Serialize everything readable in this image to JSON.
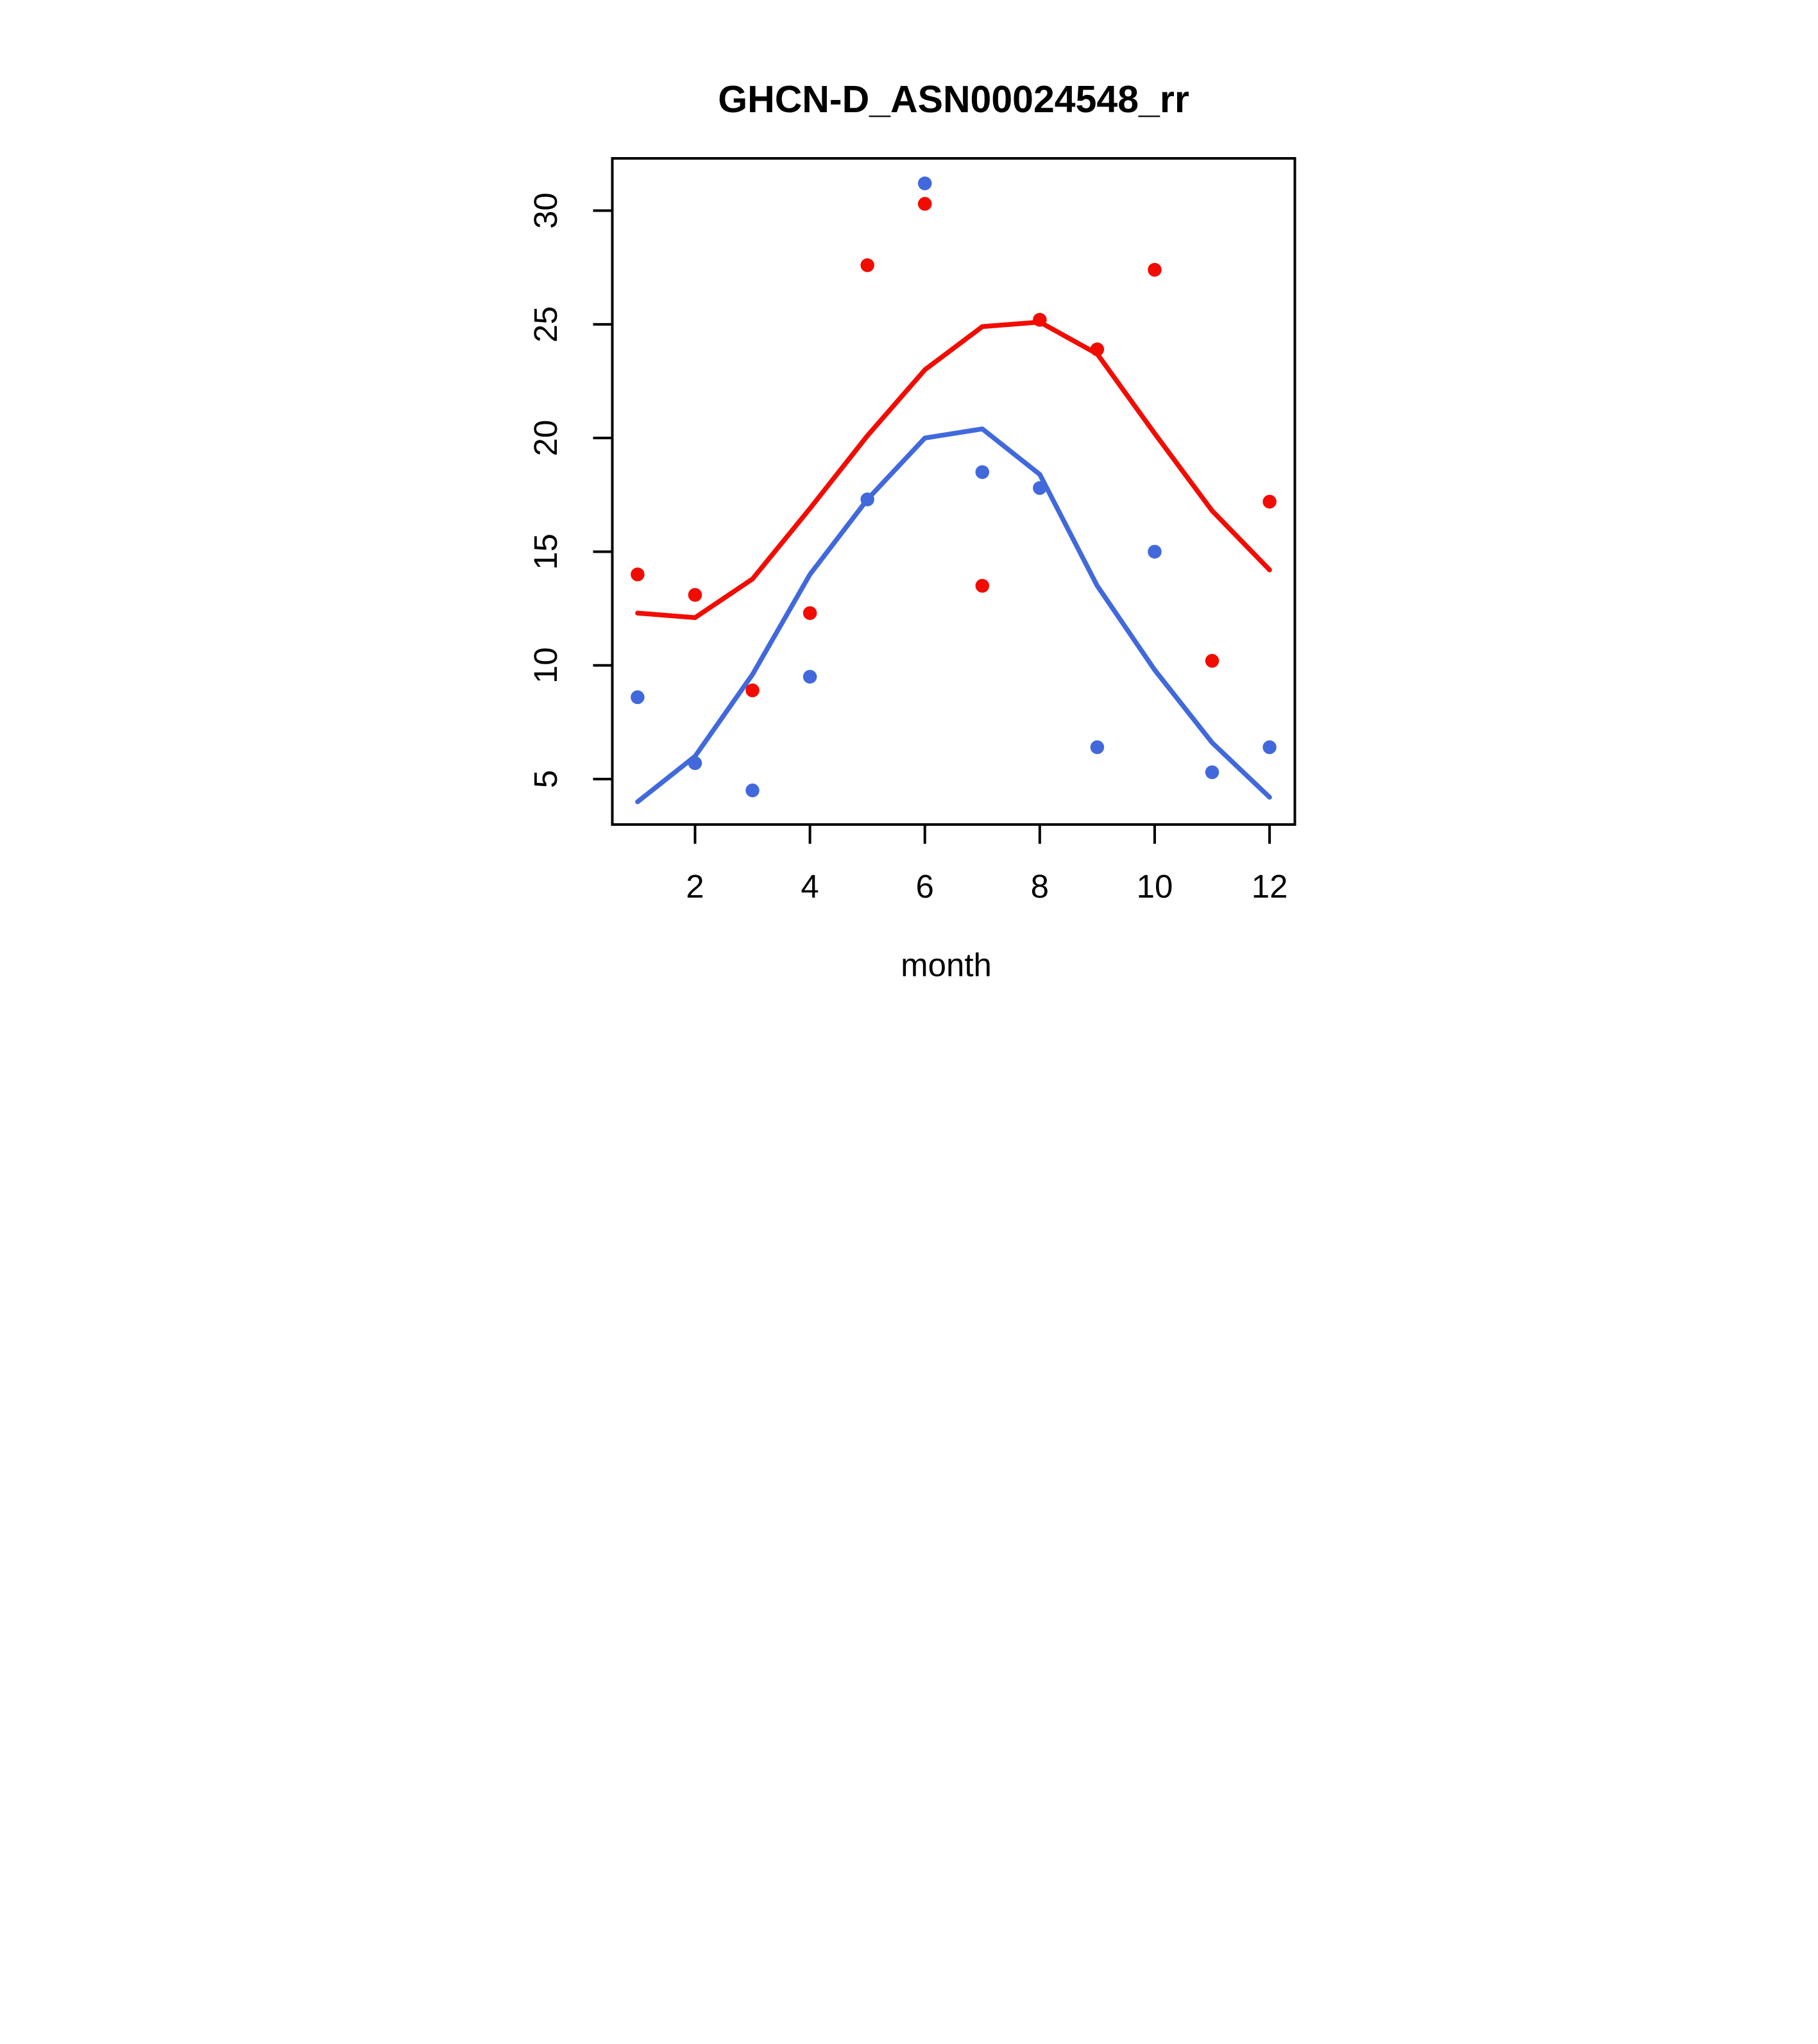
{
  "title": "GHCN-D_ASN00024548_rr",
  "xlabel": "month",
  "colors": {
    "red_series": "#F20C00",
    "blue_series": "#4169DC",
    "axis": "#000000",
    "background": "#FFFFFF"
  },
  "chart_data": {
    "type": "scatter",
    "title": "GHCN-D_ASN00024548_rr",
    "xlabel": "month",
    "ylabel": "",
    "x": [
      1,
      2,
      3,
      4,
      5,
      6,
      7,
      8,
      9,
      10,
      11,
      12
    ],
    "xticks": [
      2,
      4,
      6,
      8,
      10,
      12
    ],
    "yticks": [
      5,
      10,
      15,
      20,
      25,
      30
    ],
    "xlim": [
      0.56,
      12.44
    ],
    "ylim": [
      3.0,
      32.3
    ],
    "grid": false,
    "legend_position": "none",
    "series": [
      {
        "name": "red-line",
        "kind": "line",
        "color": "#F20C00",
        "values": [
          12.3,
          12.1,
          13.8,
          16.9,
          20.1,
          23.0,
          24.9,
          25.1,
          23.7,
          20.2,
          16.8,
          14.2
        ]
      },
      {
        "name": "blue-line",
        "kind": "line",
        "color": "#4169DC",
        "values": [
          4.0,
          6.0,
          9.6,
          14.0,
          17.3,
          20.0,
          20.4,
          18.4,
          13.5,
          9.8,
          6.6,
          4.2
        ]
      },
      {
        "name": "red-points",
        "kind": "points",
        "color": "#F20C00",
        "values": [
          14.0,
          13.1,
          8.9,
          12.3,
          27.6,
          30.3,
          13.5,
          25.2,
          23.9,
          27.4,
          10.2,
          17.2
        ]
      },
      {
        "name": "blue-points",
        "kind": "points",
        "color": "#4169DC",
        "values": [
          8.6,
          5.7,
          4.5,
          9.5,
          17.3,
          31.2,
          18.5,
          17.8,
          6.4,
          15.0,
          5.3,
          6.4
        ]
      }
    ]
  }
}
